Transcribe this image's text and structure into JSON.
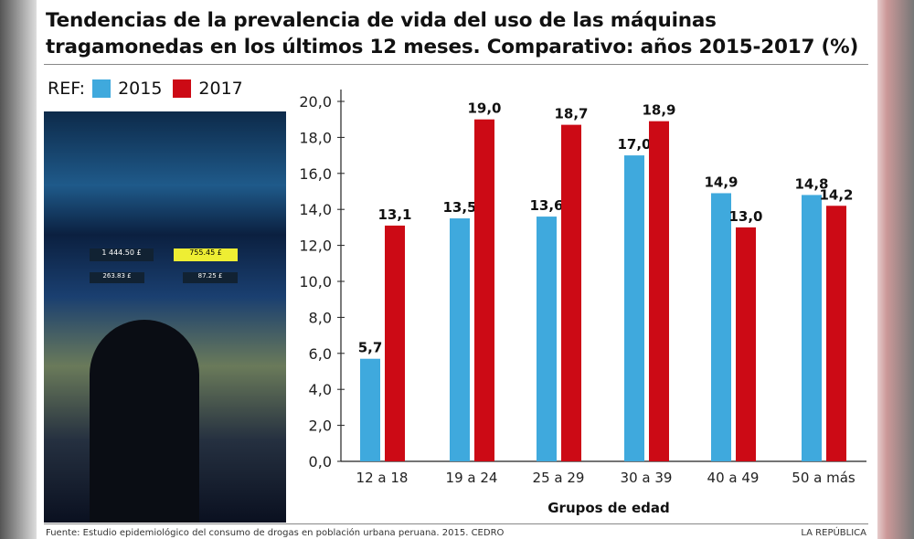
{
  "title": "Tendencias de la prevalencia de vida del uso de las máquinas tragamonedas en los últimos 12 meses. Comparativo: años 2015-2017 (%)",
  "legend": {
    "label": "REF:",
    "items": [
      "2015",
      "2017"
    ]
  },
  "footer": {
    "source": "Fuente: Estudio epidemiológico del consumo de drogas en población urbana peruana. 2015. CEDRO",
    "brand": "LA REPÚBLICA"
  },
  "photo_display": {
    "credit_values": [
      "1 444.50 £",
      "755.45 £",
      "263.83 £",
      "87.25 £"
    ]
  },
  "colors": {
    "2015": "#3fa9dd",
    "2017": "#cc0a15"
  },
  "chart_data": {
    "type": "bar",
    "categories": [
      "12 a 18",
      "19 a 24",
      "25 a 29",
      "30 a 39",
      "40 a 49",
      "50 a más"
    ],
    "series": [
      {
        "name": "2015",
        "values": [
          5.7,
          13.5,
          13.6,
          17.0,
          14.9,
          14.8
        ],
        "labels": [
          "5,7",
          "13,5",
          "13,6",
          "17,0",
          "14,9",
          "14,8"
        ]
      },
      {
        "name": "2017",
        "values": [
          13.1,
          19.0,
          18.7,
          18.9,
          13.0,
          14.2
        ],
        "labels": [
          "13,1",
          "19,0",
          "18,7",
          "18,9",
          "13,0",
          "14,2"
        ]
      }
    ],
    "xlabel": "Grupos de edad",
    "ylabel": "",
    "ylim": [
      0,
      20
    ],
    "yticks": [
      "0,0",
      "2,0",
      "4,0",
      "6,0",
      "8,0",
      "10,0",
      "12,0",
      "14,0",
      "16,0",
      "18,0",
      "20,0"
    ],
    "grid": false,
    "legend_position": "top-left"
  }
}
